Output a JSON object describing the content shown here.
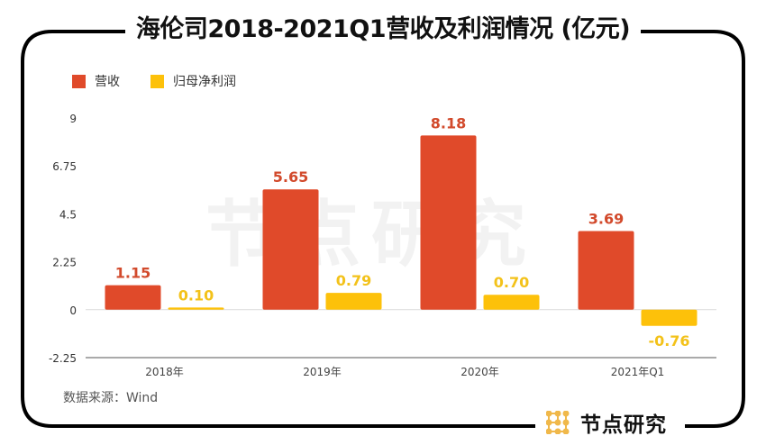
{
  "title": "海伦司2018-2021Q1营收及利润情况 (亿元)",
  "source": "数据来源：Wind",
  "brand": {
    "name": "节点研究",
    "watermark": "节点研究",
    "logo_color": "#f0b84a"
  },
  "colors": {
    "revenue": "#e04a2a",
    "profit": "#fdc10a",
    "revenue_label": "#d24a2c",
    "profit_label": "#f3c21a"
  },
  "chart_data": {
    "type": "bar",
    "title": "海伦司2018-2021Q1营收及利润情况 (亿元)",
    "xlabel": "",
    "ylabel": "",
    "categories": [
      "2018年",
      "2019年",
      "2020年",
      "2021年Q1"
    ],
    "series": [
      {
        "name": "营收",
        "values": [
          1.15,
          5.65,
          8.18,
          3.69
        ],
        "labels": [
          "1.15",
          "5.65",
          "8.18",
          "3.69"
        ]
      },
      {
        "name": "归母净利润",
        "values": [
          0.1,
          0.79,
          0.7,
          -0.76
        ],
        "labels": [
          "0.10",
          "0.79",
          "0.70",
          "-0.76"
        ]
      }
    ],
    "ylim": [
      -2.25,
      9
    ],
    "yticks": [
      "9",
      "6.75",
      "4.5",
      "2.25",
      "0",
      "-2.25"
    ],
    "ytick_values": [
      9,
      6.75,
      4.5,
      2.25,
      0,
      -2.25
    ],
    "legend": "top-left",
    "grid": false
  }
}
